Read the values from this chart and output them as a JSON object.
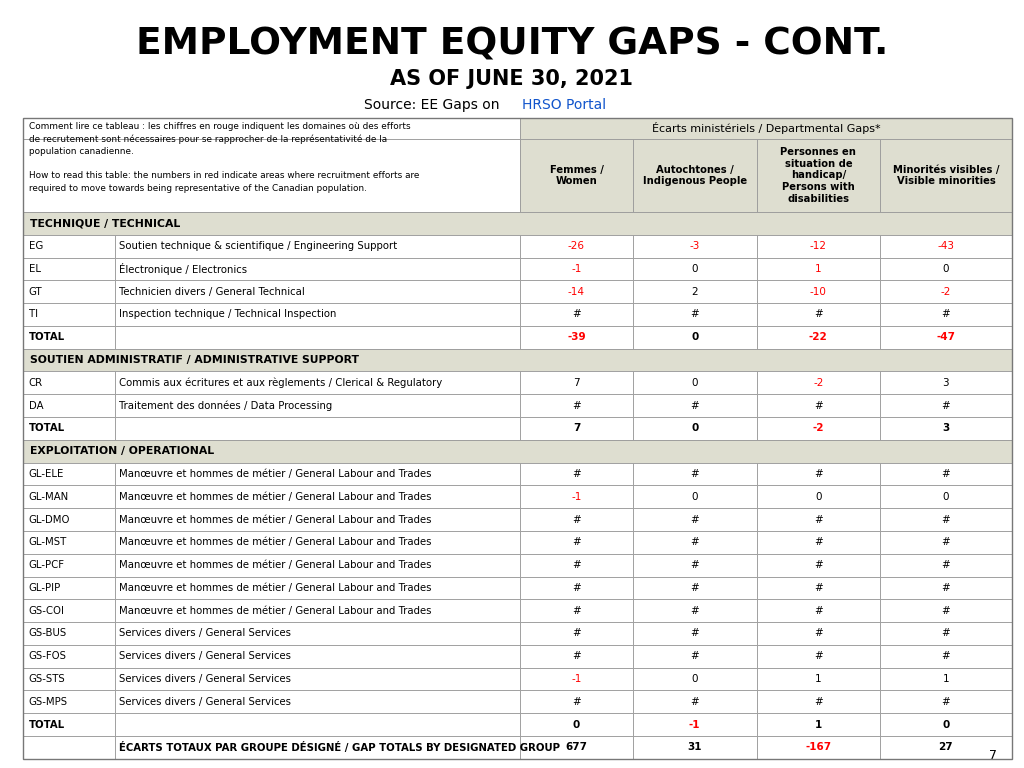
{
  "title": "EMPLOYMENT EQUITY GAPS - CONT.",
  "subtitle": "AS OF JUNE 30, 2021",
  "source_text": "Source: EE Gaps on ",
  "source_link": "HRSO Portal",
  "header_note": "Comment lire ce tableau : les chiffres en rouge indiquent les domaines où des efforts\nde recrutement sont nécessaires pour se rapprocher de la représentativité de la\npopulation canadienne.\n\nHow to read this table: the numbers in red indicate areas where recruitment efforts are\nrequired to move towards being representative of the Canadian population.",
  "dept_gaps_header": "Écarts ministériels / Departmental Gaps*",
  "col_headers": [
    "Femmes /\nWomen",
    "Autochtones /\nIndigenous People",
    "Personnes en\nsituation de\nhandicap/\nPersons with\ndisabilities",
    "Minorités visibles /\nVisible minorities"
  ],
  "section_bg": "#deded0",
  "data_bg": "#ffffff",
  "header_bg": "#deded0",
  "rows": [
    {
      "type": "section",
      "code": "",
      "desc": "TECHNIQUE / TECHNICAL",
      "cols": [
        "",
        "",
        "",
        ""
      ],
      "colors": [
        "black",
        "black",
        "black",
        "black"
      ]
    },
    {
      "type": "data",
      "code": "EG",
      "desc": "Soutien technique & scientifique / Engineering Support",
      "cols": [
        "-26",
        "-3",
        "-12",
        "-43"
      ],
      "colors": [
        "red",
        "red",
        "red",
        "red"
      ]
    },
    {
      "type": "data",
      "code": "EL",
      "desc": "Électronique / Electronics",
      "cols": [
        "-1",
        "0",
        "1",
        "0"
      ],
      "colors": [
        "red",
        "black",
        "red",
        "black"
      ]
    },
    {
      "type": "data",
      "code": "GT",
      "desc": "Technicien divers / General Technical",
      "cols": [
        "-14",
        "2",
        "-10",
        "-2"
      ],
      "colors": [
        "red",
        "black",
        "red",
        "red"
      ]
    },
    {
      "type": "data",
      "code": "TI",
      "desc": "Inspection technique / Technical Inspection",
      "cols": [
        "#",
        "#",
        "#",
        "#"
      ],
      "colors": [
        "black",
        "black",
        "black",
        "black"
      ]
    },
    {
      "type": "total",
      "code": "TOTAL",
      "desc": "",
      "cols": [
        "-39",
        "0",
        "-22",
        "-47"
      ],
      "colors": [
        "red",
        "black",
        "red",
        "red"
      ]
    },
    {
      "type": "section",
      "code": "",
      "desc": "SOUTIEN ADMINISTRATIF / ADMINISTRATIVE SUPPORT",
      "cols": [
        "",
        "",
        "",
        ""
      ],
      "colors": [
        "black",
        "black",
        "black",
        "black"
      ]
    },
    {
      "type": "data",
      "code": "CR",
      "desc": "Commis aux écritures et aux règlements / Clerical & Regulatory",
      "cols": [
        "7",
        "0",
        "-2",
        "3"
      ],
      "colors": [
        "black",
        "black",
        "red",
        "black"
      ]
    },
    {
      "type": "data",
      "code": "DA",
      "desc": "Traitement des données / Data Processing",
      "cols": [
        "#",
        "#",
        "#",
        "#"
      ],
      "colors": [
        "black",
        "black",
        "black",
        "black"
      ]
    },
    {
      "type": "total",
      "code": "TOTAL",
      "desc": "",
      "cols": [
        "7",
        "0",
        "-2",
        "3"
      ],
      "colors": [
        "black",
        "black",
        "red",
        "black"
      ]
    },
    {
      "type": "section",
      "code": "",
      "desc": "EXPLOITATION / OPERATIONAL",
      "cols": [
        "",
        "",
        "",
        ""
      ],
      "colors": [
        "black",
        "black",
        "black",
        "black"
      ]
    },
    {
      "type": "data",
      "code": "GL-ELE",
      "desc": "Manœuvre et hommes de métier / General Labour and Trades",
      "cols": [
        "#",
        "#",
        "#",
        "#"
      ],
      "colors": [
        "black",
        "black",
        "black",
        "black"
      ]
    },
    {
      "type": "data",
      "code": "GL-MAN",
      "desc": "Manœuvre et hommes de métier / General Labour and Trades",
      "cols": [
        "-1",
        "0",
        "0",
        "0"
      ],
      "colors": [
        "red",
        "black",
        "black",
        "black"
      ]
    },
    {
      "type": "data",
      "code": "GL-DMO",
      "desc": "Manœuvre et hommes de métier / General Labour and Trades",
      "cols": [
        "#",
        "#",
        "#",
        "#"
      ],
      "colors": [
        "black",
        "black",
        "black",
        "black"
      ]
    },
    {
      "type": "data",
      "code": "GL-MST",
      "desc": "Manœuvre et hommes de métier / General Labour and Trades",
      "cols": [
        "#",
        "#",
        "#",
        "#"
      ],
      "colors": [
        "black",
        "black",
        "black",
        "black"
      ]
    },
    {
      "type": "data",
      "code": "GL-PCF",
      "desc": "Manœuvre et hommes de métier / General Labour and Trades",
      "cols": [
        "#",
        "#",
        "#",
        "#"
      ],
      "colors": [
        "black",
        "black",
        "black",
        "black"
      ]
    },
    {
      "type": "data",
      "code": "GL-PIP",
      "desc": "Manœuvre et hommes de métier / General Labour and Trades",
      "cols": [
        "#",
        "#",
        "#",
        "#"
      ],
      "colors": [
        "black",
        "black",
        "black",
        "black"
      ]
    },
    {
      "type": "data",
      "code": "GS-COI",
      "desc": "Manœuvre et hommes de métier / General Labour and Trades",
      "cols": [
        "#",
        "#",
        "#",
        "#"
      ],
      "colors": [
        "black",
        "black",
        "black",
        "black"
      ]
    },
    {
      "type": "data",
      "code": "GS-BUS",
      "desc": "Services divers / General Services",
      "cols": [
        "#",
        "#",
        "#",
        "#"
      ],
      "colors": [
        "black",
        "black",
        "black",
        "black"
      ]
    },
    {
      "type": "data",
      "code": "GS-FOS",
      "desc": "Services divers / General Services",
      "cols": [
        "#",
        "#",
        "#",
        "#"
      ],
      "colors": [
        "black",
        "black",
        "black",
        "black"
      ]
    },
    {
      "type": "data",
      "code": "GS-STS",
      "desc": "Services divers / General Services",
      "cols": [
        "-1",
        "0",
        "1",
        "1"
      ],
      "colors": [
        "red",
        "black",
        "black",
        "black"
      ]
    },
    {
      "type": "data",
      "code": "GS-MPS",
      "desc": "Services divers / General Services",
      "cols": [
        "#",
        "#",
        "#",
        "#"
      ],
      "colors": [
        "black",
        "black",
        "black",
        "black"
      ]
    },
    {
      "type": "total",
      "code": "TOTAL",
      "desc": "",
      "cols": [
        "0",
        "-1",
        "1",
        "0"
      ],
      "colors": [
        "black",
        "red",
        "black",
        "black"
      ]
    },
    {
      "type": "grand_total",
      "code": "ÉCARTS TOTAUX PAR GROUPE DÉSIGNÉ / GAP TOTALS BY DESIGNATED GROUP",
      "desc": "",
      "cols": [
        "677",
        "31",
        "-167",
        "27"
      ],
      "colors": [
        "black",
        "black",
        "red",
        "black"
      ]
    }
  ],
  "page_number": "7"
}
